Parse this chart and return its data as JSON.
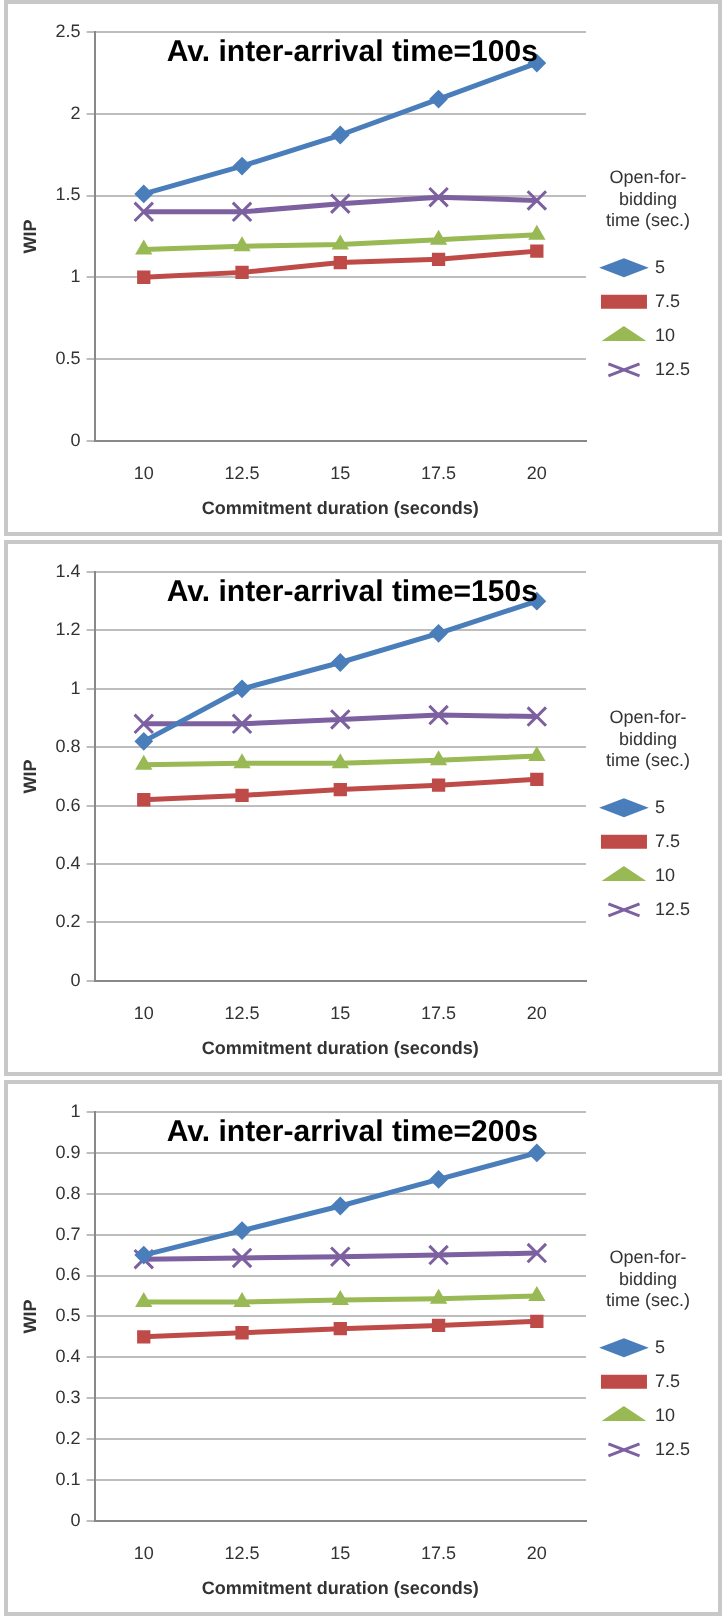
{
  "chart_data": [
    {
      "type": "line",
      "title": "Av. inter-arrival time=100s",
      "xlabel": "Commitment duration (seconds)",
      "ylabel": "WIP",
      "legend_title": "Open-for-bidding time (sec.)",
      "legend": "right",
      "grid": "y",
      "categories": [
        "10",
        "12.5",
        "15",
        "17.5",
        "20"
      ],
      "ylim": [
        0,
        2.5
      ],
      "yticks": [
        0,
        0.5,
        1,
        1.5,
        2,
        2.5
      ],
      "series": [
        {
          "name": "5",
          "color": "#4a7ebb",
          "marker": "diamond",
          "values": [
            1.51,
            1.68,
            1.87,
            2.09,
            2.31
          ]
        },
        {
          "name": "7.5",
          "color": "#be4b48",
          "marker": "square",
          "values": [
            1.0,
            1.03,
            1.09,
            1.11,
            1.16
          ]
        },
        {
          "name": "10",
          "color": "#98b954",
          "marker": "triangle",
          "values": [
            1.17,
            1.19,
            1.2,
            1.23,
            1.26
          ]
        },
        {
          "name": "12.5",
          "color": "#7d60a0",
          "marker": "cross",
          "values": [
            1.4,
            1.4,
            1.45,
            1.49,
            1.47
          ]
        }
      ]
    },
    {
      "type": "line",
      "title": "Av. inter-arrival time=150s",
      "xlabel": "Commitment duration (seconds)",
      "ylabel": "WIP",
      "legend_title": "Open-for-bidding time (sec.)",
      "legend": "right",
      "grid": "y",
      "categories": [
        "10",
        "12.5",
        "15",
        "17.5",
        "20"
      ],
      "ylim": [
        0,
        1.4
      ],
      "yticks": [
        0,
        0.2,
        0.4,
        0.6,
        0.8,
        1,
        1.2,
        1.4
      ],
      "series": [
        {
          "name": "5",
          "color": "#4a7ebb",
          "marker": "diamond",
          "values": [
            0.82,
            1.0,
            1.09,
            1.19,
            1.3
          ]
        },
        {
          "name": "7.5",
          "color": "#be4b48",
          "marker": "square",
          "values": [
            0.62,
            0.635,
            0.655,
            0.67,
            0.69
          ]
        },
        {
          "name": "10",
          "color": "#98b954",
          "marker": "triangle",
          "values": [
            0.74,
            0.745,
            0.745,
            0.755,
            0.77
          ]
        },
        {
          "name": "12.5",
          "color": "#7d60a0",
          "marker": "cross",
          "values": [
            0.88,
            0.88,
            0.895,
            0.91,
            0.905
          ]
        }
      ]
    },
    {
      "type": "line",
      "title": "Av. inter-arrival time=200s",
      "xlabel": "Commitment duration (seconds)",
      "ylabel": "WIP",
      "legend_title": "Open-for-bidding time (sec.)",
      "legend": "right",
      "grid": "y",
      "categories": [
        "10",
        "12.5",
        "15",
        "17.5",
        "20"
      ],
      "ylim": [
        0,
        1
      ],
      "yticks": [
        0,
        0.1,
        0.2,
        0.3,
        0.4,
        0.5,
        0.6,
        0.7,
        0.8,
        0.9,
        1
      ],
      "series": [
        {
          "name": "5",
          "color": "#4a7ebb",
          "marker": "diamond",
          "values": [
            0.65,
            0.71,
            0.77,
            0.835,
            0.9
          ]
        },
        {
          "name": "7.5",
          "color": "#be4b48",
          "marker": "square",
          "values": [
            0.45,
            0.46,
            0.47,
            0.478,
            0.488
          ]
        },
        {
          "name": "10",
          "color": "#98b954",
          "marker": "triangle",
          "values": [
            0.535,
            0.535,
            0.54,
            0.543,
            0.55
          ]
        },
        {
          "name": "12.5",
          "color": "#7d60a0",
          "marker": "cross",
          "values": [
            0.64,
            0.643,
            0.646,
            0.65,
            0.655
          ]
        }
      ]
    }
  ]
}
